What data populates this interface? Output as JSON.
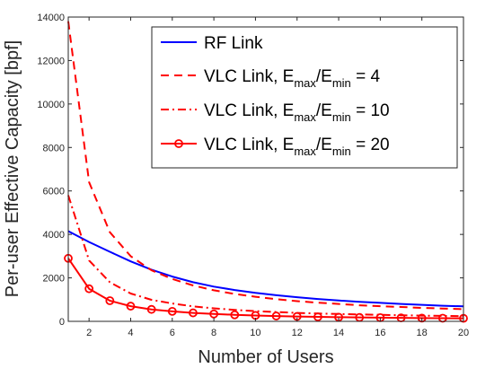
{
  "chart_data": {
    "type": "line",
    "xlabel": "Number of Users",
    "ylabel": "Per-user Effective Capacity [bpf]",
    "xlim": [
      1,
      20
    ],
    "ylim": [
      0,
      14000
    ],
    "xticks": [
      2,
      4,
      6,
      8,
      10,
      12,
      14,
      16,
      18,
      20
    ],
    "yticks": [
      0,
      2000,
      4000,
      6000,
      8000,
      10000,
      12000,
      14000
    ],
    "grid": false,
    "legend_position": "top-right",
    "x": [
      1,
      2,
      3,
      4,
      5,
      6,
      7,
      8,
      9,
      10,
      11,
      12,
      13,
      14,
      15,
      16,
      17,
      18,
      19,
      20
    ],
    "series": [
      {
        "name": "RF Link",
        "legend_parts": [
          "RF Link"
        ],
        "color": "#0000ff",
        "line_style": "solid",
        "marker": "none",
        "values": [
          4150,
          3650,
          3200,
          2760,
          2380,
          2060,
          1800,
          1600,
          1440,
          1310,
          1200,
          1110,
          1030,
          960,
          900,
          850,
          800,
          760,
          720,
          690
        ]
      },
      {
        "name": "VLC Link, Emax/Emin = 4",
        "legend_parts": [
          "VLC Link, E",
          "max",
          "/E",
          "min",
          " = 4"
        ],
        "color": "#ff0000",
        "line_style": "dashed",
        "marker": "none",
        "values": [
          13800,
          6400,
          4100,
          3000,
          2350,
          1950,
          1650,
          1430,
          1260,
          1130,
          1020,
          930,
          860,
          800,
          740,
          700,
          660,
          620,
          590,
          560
        ]
      },
      {
        "name": "VLC Link, Emax/Emin = 10",
        "legend_parts": [
          "VLC Link, E",
          "max",
          "/E",
          "min",
          " = 10"
        ],
        "color": "#ff0000",
        "line_style": "dashdot",
        "marker": "none",
        "values": [
          5800,
          2800,
          1800,
          1280,
          990,
          820,
          690,
          600,
          530,
          470,
          430,
          390,
          360,
          340,
          320,
          300,
          280,
          265,
          250,
          240
        ]
      },
      {
        "name": "VLC Link, Emax/Emin = 20",
        "legend_parts": [
          "VLC Link, E",
          "max",
          "/E",
          "min",
          " = 20"
        ],
        "color": "#ff0000",
        "line_style": "solid",
        "marker": "circle",
        "values": [
          2900,
          1500,
          950,
          700,
          550,
          460,
          390,
          340,
          300,
          270,
          245,
          225,
          205,
          190,
          180,
          170,
          160,
          150,
          145,
          140
        ]
      }
    ]
  }
}
